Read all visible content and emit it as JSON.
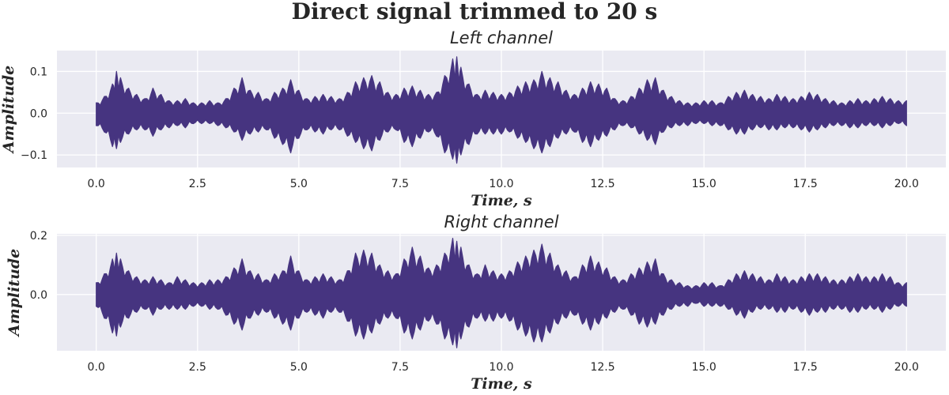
{
  "colors": {
    "background": "#EAEAF2",
    "grid": "#FFFFFF",
    "signal": "#463480",
    "text": "#262626"
  },
  "chart_data": {
    "title": "Direct signal trimmed to 20 s",
    "type": "line",
    "grid": true,
    "panels": [
      {
        "title": "Left channel",
        "xlabel": "Time, s",
        "ylabel": "Amplitude",
        "xlim": [
          -0.97,
          20.97
        ],
        "ylim": [
          -0.13,
          0.15
        ],
        "xticks": [
          0.0,
          2.5,
          5.0,
          7.5,
          10.0,
          12.5,
          15.0,
          17.5,
          20.0
        ],
        "xtick_labels": [
          "0.0",
          "2.5",
          "5.0",
          "7.5",
          "10.0",
          "12.5",
          "15.0",
          "17.5",
          "20.0"
        ],
        "yticks": [
          -0.1,
          0.0,
          0.1
        ],
        "ytick_labels": [
          "−0.1",
          "0.0",
          "0.1"
        ],
        "series": [
          {
            "x": [
              0.0,
              0.2,
              0.4,
              0.5,
              0.6,
              0.8,
              1.0,
              1.2,
              1.4,
              1.6,
              1.8,
              2.0,
              2.2,
              2.4,
              2.6,
              2.8,
              3.0,
              3.2,
              3.4,
              3.6,
              3.8,
              4.0,
              4.2,
              4.4,
              4.6,
              4.8,
              5.0,
              5.2,
              5.4,
              5.6,
              5.8,
              6.0,
              6.2,
              6.4,
              6.6,
              6.8,
              7.0,
              7.2,
              7.4,
              7.6,
              7.8,
              8.0,
              8.2,
              8.4,
              8.6,
              8.8,
              8.9,
              9.0,
              9.2,
              9.4,
              9.6,
              9.8,
              10.0,
              10.2,
              10.4,
              10.6,
              10.8,
              11.0,
              11.2,
              11.4,
              11.6,
              11.8,
              12.0,
              12.2,
              12.4,
              12.6,
              12.8,
              13.0,
              13.2,
              13.4,
              13.6,
              13.8,
              14.0,
              14.2,
              14.4,
              14.6,
              14.8,
              15.0,
              15.2,
              15.4,
              15.6,
              15.8,
              16.0,
              16.2,
              16.4,
              16.6,
              16.8,
              17.0,
              17.2,
              17.4,
              17.6,
              17.8,
              18.0,
              18.2,
              18.4,
              18.6,
              18.8,
              19.0,
              19.2,
              19.4,
              19.6,
              19.8,
              20.0
            ],
            "upper": [
              0.025,
              0.04,
              0.07,
              0.1,
              0.085,
              0.06,
              0.045,
              0.035,
              0.06,
              0.045,
              0.03,
              0.03,
              0.035,
              0.025,
              0.025,
              0.03,
              0.025,
              0.035,
              0.06,
              0.085,
              0.055,
              0.05,
              0.035,
              0.05,
              0.06,
              0.08,
              0.055,
              0.035,
              0.04,
              0.045,
              0.04,
              0.035,
              0.05,
              0.075,
              0.085,
              0.09,
              0.075,
              0.05,
              0.045,
              0.06,
              0.065,
              0.055,
              0.045,
              0.05,
              0.09,
              0.13,
              0.135,
              0.11,
              0.07,
              0.045,
              0.055,
              0.05,
              0.045,
              0.05,
              0.065,
              0.075,
              0.08,
              0.1,
              0.085,
              0.075,
              0.055,
              0.045,
              0.06,
              0.075,
              0.07,
              0.06,
              0.035,
              0.03,
              0.04,
              0.06,
              0.08,
              0.085,
              0.055,
              0.04,
              0.03,
              0.025,
              0.025,
              0.03,
              0.03,
              0.025,
              0.04,
              0.05,
              0.055,
              0.045,
              0.04,
              0.035,
              0.045,
              0.04,
              0.035,
              0.04,
              0.05,
              0.045,
              0.035,
              0.03,
              0.025,
              0.03,
              0.035,
              0.03,
              0.035,
              0.04,
              0.035,
              0.03,
              0.03
            ],
            "lower": [
              -0.03,
              -0.045,
              -0.08,
              -0.085,
              -0.07,
              -0.05,
              -0.04,
              -0.04,
              -0.055,
              -0.04,
              -0.035,
              -0.03,
              -0.035,
              -0.025,
              -0.025,
              -0.025,
              -0.03,
              -0.035,
              -0.045,
              -0.065,
              -0.05,
              -0.045,
              -0.04,
              -0.06,
              -0.075,
              -0.095,
              -0.06,
              -0.04,
              -0.045,
              -0.05,
              -0.04,
              -0.04,
              -0.055,
              -0.07,
              -0.085,
              -0.09,
              -0.065,
              -0.045,
              -0.04,
              -0.07,
              -0.08,
              -0.06,
              -0.045,
              -0.055,
              -0.095,
              -0.11,
              -0.12,
              -0.1,
              -0.075,
              -0.05,
              -0.05,
              -0.05,
              -0.05,
              -0.045,
              -0.06,
              -0.07,
              -0.085,
              -0.095,
              -0.08,
              -0.06,
              -0.05,
              -0.045,
              -0.07,
              -0.08,
              -0.065,
              -0.055,
              -0.04,
              -0.03,
              -0.035,
              -0.05,
              -0.065,
              -0.075,
              -0.045,
              -0.035,
              -0.03,
              -0.03,
              -0.025,
              -0.025,
              -0.03,
              -0.03,
              -0.04,
              -0.05,
              -0.05,
              -0.04,
              -0.035,
              -0.04,
              -0.04,
              -0.035,
              -0.035,
              -0.04,
              -0.045,
              -0.04,
              -0.035,
              -0.03,
              -0.03,
              -0.035,
              -0.035,
              -0.03,
              -0.03,
              -0.035,
              -0.03,
              -0.025,
              -0.03
            ]
          }
        ]
      },
      {
        "title": "Right channel",
        "xlabel": "Time, s",
        "ylabel": "Amplitude",
        "xlim": [
          -0.97,
          20.97
        ],
        "ylim": [
          -0.19,
          0.205
        ],
        "xticks": [
          0.0,
          2.5,
          5.0,
          7.5,
          10.0,
          12.5,
          15.0,
          17.5,
          20.0
        ],
        "xtick_labels": [
          "0.0",
          "2.5",
          "5.0",
          "7.5",
          "10.0",
          "12.5",
          "15.0",
          "17.5",
          "20.0"
        ],
        "yticks": [
          0.0,
          0.2
        ],
        "ytick_labels": [
          "0.0",
          "0.2"
        ],
        "series": [
          {
            "x": [
              0.0,
              0.2,
              0.4,
              0.5,
              0.6,
              0.8,
              1.0,
              1.2,
              1.4,
              1.6,
              1.8,
              2.0,
              2.2,
              2.4,
              2.6,
              2.8,
              3.0,
              3.2,
              3.4,
              3.6,
              3.8,
              4.0,
              4.2,
              4.4,
              4.6,
              4.8,
              5.0,
              5.2,
              5.4,
              5.6,
              5.8,
              6.0,
              6.2,
              6.4,
              6.6,
              6.8,
              7.0,
              7.2,
              7.4,
              7.6,
              7.8,
              8.0,
              8.2,
              8.4,
              8.6,
              8.8,
              8.9,
              9.0,
              9.2,
              9.4,
              9.6,
              9.8,
              10.0,
              10.2,
              10.4,
              10.6,
              10.8,
              11.0,
              11.2,
              11.4,
              11.6,
              11.8,
              12.0,
              12.2,
              12.4,
              12.6,
              12.8,
              13.0,
              13.2,
              13.4,
              13.6,
              13.8,
              14.0,
              14.2,
              14.4,
              14.6,
              14.8,
              15.0,
              15.2,
              15.4,
              15.6,
              15.8,
              16.0,
              16.2,
              16.4,
              16.6,
              16.8,
              17.0,
              17.2,
              17.4,
              17.6,
              17.8,
              18.0,
              18.2,
              18.4,
              18.6,
              18.8,
              19.0,
              19.2,
              19.4,
              19.6,
              19.8,
              20.0
            ],
            "upper": [
              0.04,
              0.07,
              0.12,
              0.14,
              0.12,
              0.08,
              0.06,
              0.05,
              0.06,
              0.05,
              0.04,
              0.06,
              0.05,
              0.04,
              0.04,
              0.05,
              0.05,
              0.06,
              0.09,
              0.12,
              0.08,
              0.07,
              0.05,
              0.07,
              0.08,
              0.13,
              0.08,
              0.05,
              0.06,
              0.07,
              0.06,
              0.05,
              0.08,
              0.14,
              0.15,
              0.14,
              0.1,
              0.08,
              0.07,
              0.12,
              0.16,
              0.13,
              0.09,
              0.1,
              0.14,
              0.19,
              0.18,
              0.16,
              0.1,
              0.07,
              0.1,
              0.08,
              0.07,
              0.08,
              0.11,
              0.13,
              0.15,
              0.17,
              0.14,
              0.1,
              0.08,
              0.06,
              0.1,
              0.13,
              0.11,
              0.09,
              0.06,
              0.05,
              0.07,
              0.09,
              0.11,
              0.12,
              0.07,
              0.05,
              0.04,
              0.03,
              0.03,
              0.04,
              0.04,
              0.03,
              0.05,
              0.07,
              0.08,
              0.07,
              0.06,
              0.05,
              0.07,
              0.06,
              0.05,
              0.06,
              0.07,
              0.07,
              0.06,
              0.05,
              0.05,
              0.06,
              0.07,
              0.06,
              0.06,
              0.07,
              0.06,
              0.04,
              0.04
            ],
            "lower": [
              -0.04,
              -0.08,
              -0.13,
              -0.14,
              -0.11,
              -0.08,
              -0.06,
              -0.05,
              -0.07,
              -0.05,
              -0.05,
              -0.05,
              -0.05,
              -0.04,
              -0.04,
              -0.05,
              -0.05,
              -0.07,
              -0.1,
              -0.12,
              -0.08,
              -0.07,
              -0.06,
              -0.08,
              -0.1,
              -0.12,
              -0.08,
              -0.06,
              -0.07,
              -0.08,
              -0.06,
              -0.06,
              -0.09,
              -0.14,
              -0.15,
              -0.13,
              -0.1,
              -0.08,
              -0.08,
              -0.13,
              -0.15,
              -0.12,
              -0.09,
              -0.1,
              -0.15,
              -0.17,
              -0.18,
              -0.15,
              -0.11,
              -0.08,
              -0.09,
              -0.09,
              -0.08,
              -0.09,
              -0.12,
              -0.14,
              -0.16,
              -0.16,
              -0.13,
              -0.1,
              -0.08,
              -0.07,
              -0.1,
              -0.12,
              -0.1,
              -0.08,
              -0.06,
              -0.05,
              -0.07,
              -0.1,
              -0.11,
              -0.1,
              -0.07,
              -0.05,
              -0.04,
              -0.04,
              -0.03,
              -0.04,
              -0.04,
              -0.04,
              -0.05,
              -0.07,
              -0.08,
              -0.06,
              -0.05,
              -0.05,
              -0.06,
              -0.06,
              -0.05,
              -0.06,
              -0.07,
              -0.06,
              -0.06,
              -0.05,
              -0.05,
              -0.06,
              -0.06,
              -0.05,
              -0.05,
              -0.06,
              -0.05,
              -0.04,
              -0.04
            ]
          }
        ]
      }
    ]
  }
}
